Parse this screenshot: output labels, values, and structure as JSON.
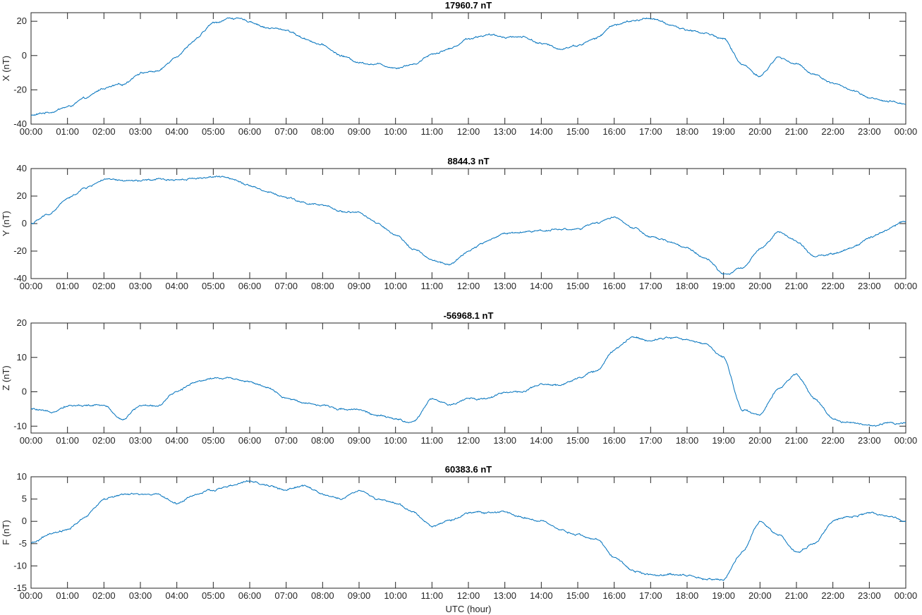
{
  "chart_data": [
    {
      "type": "line",
      "title": "17960.7 nT",
      "ylabel": "X (nT)",
      "xlabel": "",
      "ylim": [
        -40,
        25
      ],
      "yticks": [
        -40,
        -20,
        0,
        20
      ],
      "color": "#0072bd",
      "x_hours": [
        0,
        0.5,
        1,
        1.5,
        2,
        2.5,
        3,
        3.5,
        4,
        4.5,
        5,
        5.5,
        6,
        6.5,
        7,
        7.5,
        8,
        8.5,
        9,
        9.5,
        10,
        10.5,
        11,
        11.5,
        12,
        12.5,
        13,
        13.5,
        14,
        14.5,
        15,
        15.5,
        16,
        16.5,
        17,
        17.5,
        18,
        18.5,
        19,
        19.5,
        20,
        20.5,
        21,
        21.5,
        22,
        22.5,
        23,
        23.5,
        24
      ],
      "y": [
        -35,
        -33,
        -30,
        -25,
        -19,
        -17,
        -10,
        -9,
        0,
        9,
        19,
        22,
        20,
        16,
        15,
        10,
        6,
        0,
        -4,
        -5,
        -7,
        -5,
        1,
        4,
        10,
        12,
        11,
        11,
        7,
        4,
        6,
        10,
        18,
        20,
        22,
        18,
        15,
        13,
        10,
        -5,
        -12,
        -1,
        -5,
        -11,
        -16,
        -20,
        -25,
        -27,
        -28
      ]
    },
    {
      "type": "line",
      "title": "8844.3 nT",
      "ylabel": "Y (nT)",
      "xlabel": "",
      "ylim": [
        -40,
        40
      ],
      "yticks": [
        -40,
        -20,
        0,
        20,
        40
      ],
      "color": "#0072bd",
      "x_hours": [
        0,
        0.5,
        1,
        1.5,
        2,
        2.5,
        3,
        3.5,
        4,
        4.5,
        5,
        5.5,
        6,
        6.5,
        7,
        7.5,
        8,
        8.5,
        9,
        9.5,
        10,
        10.5,
        11,
        11.5,
        12,
        12.5,
        13,
        13.5,
        14,
        14.5,
        15,
        15.5,
        16,
        16.5,
        17,
        17.5,
        18,
        18.5,
        19,
        19.5,
        20,
        20.5,
        21,
        21.5,
        22,
        22.5,
        23,
        23.5,
        24
      ],
      "y": [
        0,
        7,
        18,
        26,
        32,
        31,
        31,
        32,
        32,
        33,
        34,
        33,
        28,
        23,
        19,
        15,
        13,
        9,
        8,
        0,
        -9,
        -18,
        -27,
        -30,
        -20,
        -13,
        -7,
        -6,
        -5,
        -4,
        -4,
        0,
        5,
        -3,
        -10,
        -13,
        -18,
        -25,
        -37,
        -33,
        -18,
        -6,
        -13,
        -24,
        -22,
        -18,
        -10,
        -4,
        2
      ]
    },
    {
      "type": "line",
      "title": "-56968.1 nT",
      "ylabel": "Z (nT)",
      "xlabel": "",
      "ylim": [
        -12,
        20
      ],
      "yticks": [
        -10,
        0,
        10,
        20
      ],
      "color": "#0072bd",
      "x_hours": [
        0,
        0.5,
        1,
        1.5,
        2,
        2.5,
        3,
        3.5,
        4,
        4.5,
        5,
        5.5,
        6,
        6.5,
        7,
        7.5,
        8,
        8.5,
        9,
        9.5,
        10,
        10.5,
        11,
        11.5,
        12,
        12.5,
        13,
        13.5,
        14,
        14.5,
        15,
        15.5,
        16,
        16.5,
        17,
        17.5,
        18,
        18.5,
        19,
        19.5,
        20,
        20.5,
        21,
        21.5,
        22,
        22.5,
        23,
        23.5,
        24
      ],
      "y": [
        -5,
        -6,
        -4,
        -4,
        -4,
        -8,
        -4,
        -4,
        0,
        3,
        4,
        4,
        3,
        1,
        -2,
        -3,
        -4,
        -5,
        -5,
        -7,
        -8,
        -9,
        -2,
        -4,
        -2,
        -2,
        0,
        0,
        2,
        2,
        4,
        6,
        12,
        16,
        15,
        16,
        15,
        14,
        10,
        -5,
        -7,
        1,
        5,
        -2,
        -8,
        -9,
        -10,
        -9,
        -9
      ]
    },
    {
      "type": "line",
      "title": "60383.6 nT",
      "ylabel": "F (nT)",
      "xlabel": "UTC (hour)",
      "ylim": [
        -15,
        10
      ],
      "yticks": [
        -15,
        -10,
        -5,
        0,
        5,
        10
      ],
      "color": "#0072bd",
      "x_hours": [
        0,
        0.5,
        1,
        1.5,
        2,
        2.5,
        3,
        3.5,
        4,
        4.5,
        5,
        5.5,
        6,
        6.5,
        7,
        7.5,
        8,
        8.5,
        9,
        9.5,
        10,
        10.5,
        11,
        11.5,
        12,
        12.5,
        13,
        13.5,
        14,
        14.5,
        15,
        15.5,
        16,
        16.5,
        17,
        17.5,
        18,
        18.5,
        19,
        19.5,
        20,
        20.5,
        21,
        21.5,
        22,
        22.5,
        23,
        23.5,
        24
      ],
      "y": [
        -5,
        -3,
        -2,
        1,
        5,
        6,
        6,
        6,
        4,
        6,
        7,
        8,
        9,
        8,
        7,
        8,
        6,
        5,
        7,
        5,
        4,
        2,
        -1,
        0,
        2,
        2,
        2,
        1,
        0,
        -2,
        -3,
        -4,
        -8,
        -11,
        -12,
        -12,
        -12,
        -13,
        -13,
        -7,
        0,
        -3,
        -7,
        -5,
        0,
        1,
        2,
        1,
        0
      ]
    }
  ],
  "axes": {
    "x_ticks": [
      "00:00",
      "01:00",
      "02:00",
      "03:00",
      "04:00",
      "05:00",
      "06:00",
      "07:00",
      "08:00",
      "09:00",
      "10:00",
      "11:00",
      "12:00",
      "13:00",
      "14:00",
      "15:00",
      "16:00",
      "17:00",
      "18:00",
      "19:00",
      "20:00",
      "21:00",
      "22:00",
      "23:00",
      "00:00"
    ]
  }
}
